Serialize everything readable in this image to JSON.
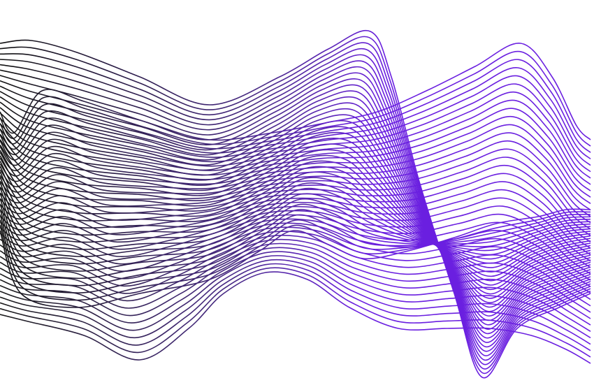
{
  "artwork": {
    "kind": "abstract line wave",
    "bundles": [
      {
        "name": "bundle-a",
        "line_count": 36,
        "color_start": "#111111",
        "color_end": "#6a1fe0"
      },
      {
        "name": "bundle-b",
        "line_count": 36,
        "color_start": "#1a1a1a",
        "color_end": "#6a1fe0"
      }
    ],
    "background": "#ffffff"
  }
}
